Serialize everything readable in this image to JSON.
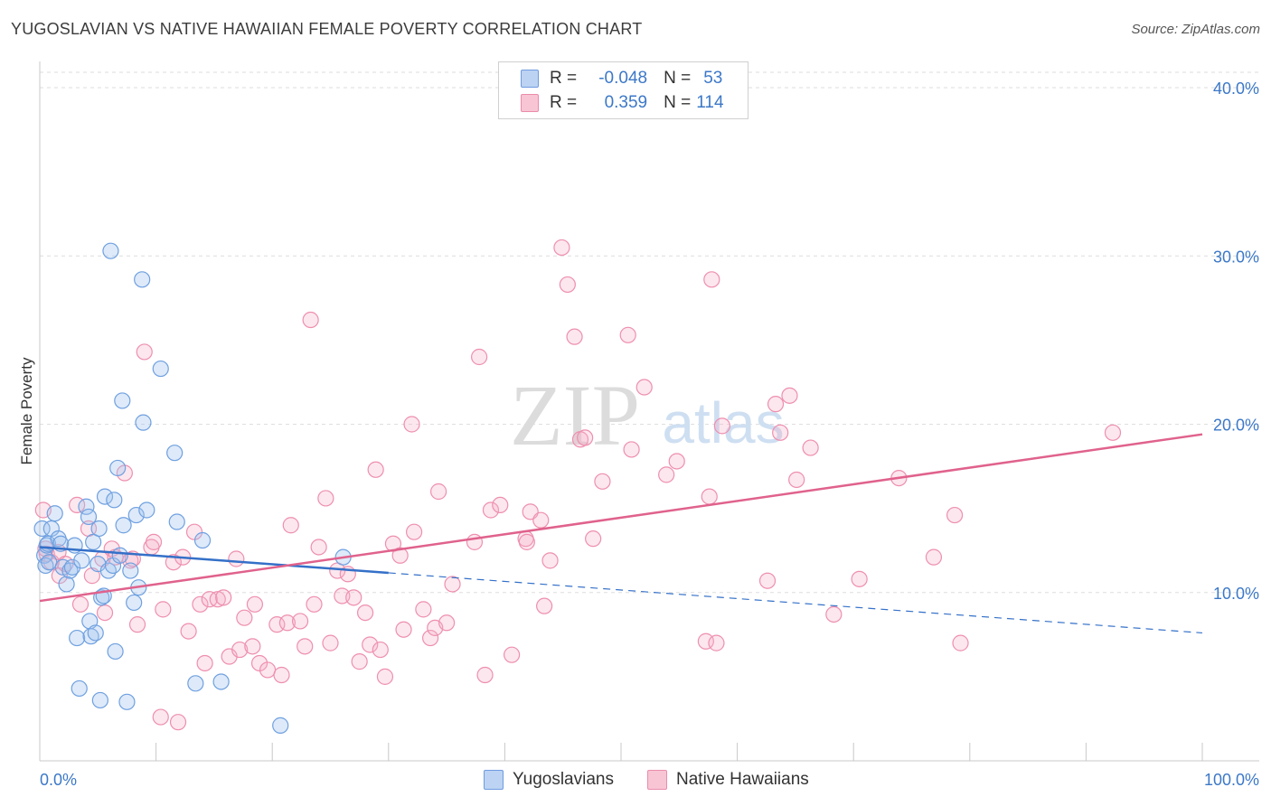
{
  "title": "YUGOSLAVIAN VS NATIVE HAWAIIAN FEMALE POVERTY CORRELATION CHART",
  "source": "Source: ZipAtlas.com",
  "watermark": {
    "zip": "ZIP",
    "atlas": "atlas"
  },
  "colors": {
    "blue": "#6fa0e0",
    "blue_line": "#3470c8",
    "pink": "#ee8fae",
    "pink_line": "#e0628c",
    "axis_text": "#3c78c8"
  },
  "legend": {
    "series1": {
      "r_label": "R =",
      "r_value": "-0.048",
      "n_label": "N =",
      "n_value": "53"
    },
    "series2": {
      "r_label": "R =",
      "r_value": "0.359",
      "n_label": "N =",
      "n_value": "114"
    }
  },
  "bottom_legend": {
    "series1": "Yugoslavians",
    "series2": "Native Hawaiians"
  },
  "chart_data": {
    "type": "scatter",
    "title": "YUGOSLAVIAN VS NATIVE HAWAIIAN FEMALE POVERTY CORRELATION CHART",
    "xlabel": "",
    "ylabel": "Female Poverty",
    "xlim": [
      0,
      100
    ],
    "ylim": [
      0,
      40
    ],
    "x_tick_labels": [
      "0.0%",
      "100.0%"
    ],
    "y_ticks": [
      10,
      20,
      30,
      40
    ],
    "y_tick_labels": [
      "10.0%",
      "20.0%",
      "30.0%",
      "40.0%"
    ],
    "grid": true,
    "series": [
      {
        "name": "Yugoslavians",
        "R": -0.048,
        "N": 53,
        "trend": {
          "x0": 0,
          "y0": 12.7,
          "x1": 100,
          "y1": 7.6,
          "solid_until_x": 30
        },
        "points": [
          [
            0.2,
            13.8
          ],
          [
            0.4,
            12.2
          ],
          [
            0.5,
            11.6
          ],
          [
            0.6,
            12.8
          ],
          [
            0.7,
            12.9
          ],
          [
            0.8,
            11.8
          ],
          [
            1.0,
            13.8
          ],
          [
            1.3,
            14.7
          ],
          [
            1.6,
            13.2
          ],
          [
            1.8,
            12.9
          ],
          [
            2.0,
            11.5
          ],
          [
            2.3,
            10.5
          ],
          [
            2.6,
            11.3
          ],
          [
            2.8,
            11.5
          ],
          [
            3.0,
            12.8
          ],
          [
            3.2,
            7.3
          ],
          [
            3.6,
            11.9
          ],
          [
            4.0,
            15.1
          ],
          [
            4.2,
            14.5
          ],
          [
            4.3,
            8.3
          ],
          [
            4.4,
            7.4
          ],
          [
            4.6,
            13.0
          ],
          [
            4.8,
            7.6
          ],
          [
            5.0,
            11.7
          ],
          [
            5.1,
            13.8
          ],
          [
            5.2,
            3.6
          ],
          [
            5.3,
            9.7
          ],
          [
            5.5,
            9.8
          ],
          [
            5.6,
            15.7
          ],
          [
            5.9,
            11.3
          ],
          [
            6.1,
            30.3
          ],
          [
            6.3,
            11.6
          ],
          [
            6.4,
            15.5
          ],
          [
            6.5,
            6.5
          ],
          [
            6.7,
            17.4
          ],
          [
            6.9,
            12.2
          ],
          [
            7.1,
            21.4
          ],
          [
            7.2,
            14.0
          ],
          [
            7.5,
            3.5
          ],
          [
            7.8,
            11.3
          ],
          [
            8.1,
            9.4
          ],
          [
            8.3,
            14.6
          ],
          [
            8.5,
            10.3
          ],
          [
            8.8,
            28.6
          ],
          [
            8.9,
            20.1
          ],
          [
            9.2,
            14.9
          ],
          [
            10.4,
            23.3
          ],
          [
            11.6,
            18.3
          ],
          [
            11.8,
            14.2
          ],
          [
            13.4,
            4.6
          ],
          [
            14.0,
            13.1
          ],
          [
            15.6,
            4.7
          ],
          [
            20.7,
            2.1
          ],
          [
            26.1,
            12.1
          ],
          [
            3.4,
            4.3
          ]
        ]
      },
      {
        "name": "Native Hawaiians",
        "R": 0.359,
        "N": 114,
        "trend": {
          "x0": 0,
          "y0": 9.5,
          "x1": 100,
          "y1": 19.4
        },
        "points": [
          [
            0.3,
            14.9
          ],
          [
            0.6,
            12.3
          ],
          [
            1.0,
            11.8
          ],
          [
            1.6,
            12.4
          ],
          [
            1.7,
            11.0
          ],
          [
            2.2,
            11.7
          ],
          [
            3.2,
            15.2
          ],
          [
            3.5,
            9.3
          ],
          [
            4.2,
            13.8
          ],
          [
            4.5,
            11.0
          ],
          [
            5.4,
            12.0
          ],
          [
            5.6,
            8.8
          ],
          [
            6.2,
            12.6
          ],
          [
            6.5,
            12.1
          ],
          [
            7.3,
            17.1
          ],
          [
            7.8,
            11.9
          ],
          [
            8.0,
            12.0
          ],
          [
            8.4,
            8.1
          ],
          [
            9.0,
            24.3
          ],
          [
            9.6,
            12.7
          ],
          [
            9.8,
            13.0
          ],
          [
            10.4,
            2.6
          ],
          [
            10.6,
            9.0
          ],
          [
            11.5,
            11.8
          ],
          [
            11.9,
            2.3
          ],
          [
            12.3,
            12.1
          ],
          [
            12.8,
            7.7
          ],
          [
            13.3,
            13.6
          ],
          [
            13.8,
            9.3
          ],
          [
            14.2,
            5.8
          ],
          [
            14.6,
            9.6
          ],
          [
            15.3,
            9.6
          ],
          [
            15.8,
            9.7
          ],
          [
            16.3,
            6.2
          ],
          [
            16.9,
            12.0
          ],
          [
            17.2,
            6.6
          ],
          [
            17.6,
            8.5
          ],
          [
            18.3,
            6.8
          ],
          [
            18.5,
            9.3
          ],
          [
            18.9,
            5.8
          ],
          [
            19.6,
            5.4
          ],
          [
            20.4,
            8.1
          ],
          [
            20.8,
            5.1
          ],
          [
            21.3,
            8.2
          ],
          [
            21.6,
            14.0
          ],
          [
            22.4,
            8.3
          ],
          [
            22.8,
            6.8
          ],
          [
            23.3,
            26.2
          ],
          [
            23.6,
            9.3
          ],
          [
            24.0,
            12.7
          ],
          [
            24.6,
            15.6
          ],
          [
            25.0,
            7.0
          ],
          [
            25.6,
            11.3
          ],
          [
            26.0,
            9.8
          ],
          [
            26.5,
            11.1
          ],
          [
            27.0,
            9.7
          ],
          [
            27.5,
            5.9
          ],
          [
            28.0,
            8.8
          ],
          [
            28.4,
            6.9
          ],
          [
            28.9,
            17.3
          ],
          [
            29.3,
            6.6
          ],
          [
            29.7,
            5.0
          ],
          [
            30.4,
            12.9
          ],
          [
            31.0,
            12.2
          ],
          [
            31.3,
            7.8
          ],
          [
            32.0,
            20.0
          ],
          [
            32.2,
            13.6
          ],
          [
            33.0,
            9.0
          ],
          [
            33.6,
            7.3
          ],
          [
            34.0,
            7.9
          ],
          [
            34.3,
            16.0
          ],
          [
            35.0,
            8.2
          ],
          [
            35.5,
            10.5
          ],
          [
            37.4,
            13.0
          ],
          [
            37.8,
            24.0
          ],
          [
            38.3,
            5.1
          ],
          [
            38.8,
            14.9
          ],
          [
            39.6,
            15.2
          ],
          [
            40.6,
            6.3
          ],
          [
            41.8,
            13.2
          ],
          [
            41.9,
            13.0
          ],
          [
            42.2,
            14.8
          ],
          [
            43.1,
            14.3
          ],
          [
            43.4,
            9.2
          ],
          [
            43.9,
            11.9
          ],
          [
            44.9,
            30.5
          ],
          [
            45.4,
            28.3
          ],
          [
            46.0,
            25.2
          ],
          [
            46.5,
            19.1
          ],
          [
            46.9,
            19.2
          ],
          [
            47.6,
            13.2
          ],
          [
            48.4,
            16.6
          ],
          [
            50.6,
            25.3
          ],
          [
            50.9,
            18.5
          ],
          [
            52.0,
            22.2
          ],
          [
            53.9,
            17.0
          ],
          [
            54.8,
            17.8
          ],
          [
            57.3,
            7.1
          ],
          [
            57.6,
            15.7
          ],
          [
            57.8,
            28.6
          ],
          [
            58.2,
            7.0
          ],
          [
            58.7,
            19.9
          ],
          [
            62.6,
            10.7
          ],
          [
            63.3,
            21.2
          ],
          [
            63.7,
            19.5
          ],
          [
            64.5,
            21.7
          ],
          [
            65.1,
            16.7
          ],
          [
            66.3,
            18.6
          ],
          [
            68.3,
            8.7
          ],
          [
            70.5,
            10.8
          ],
          [
            73.9,
            16.8
          ],
          [
            76.9,
            12.1
          ],
          [
            78.7,
            14.6
          ],
          [
            79.2,
            7.0
          ],
          [
            92.3,
            19.5
          ],
          [
            0.5,
            12.6
          ]
        ]
      }
    ]
  }
}
